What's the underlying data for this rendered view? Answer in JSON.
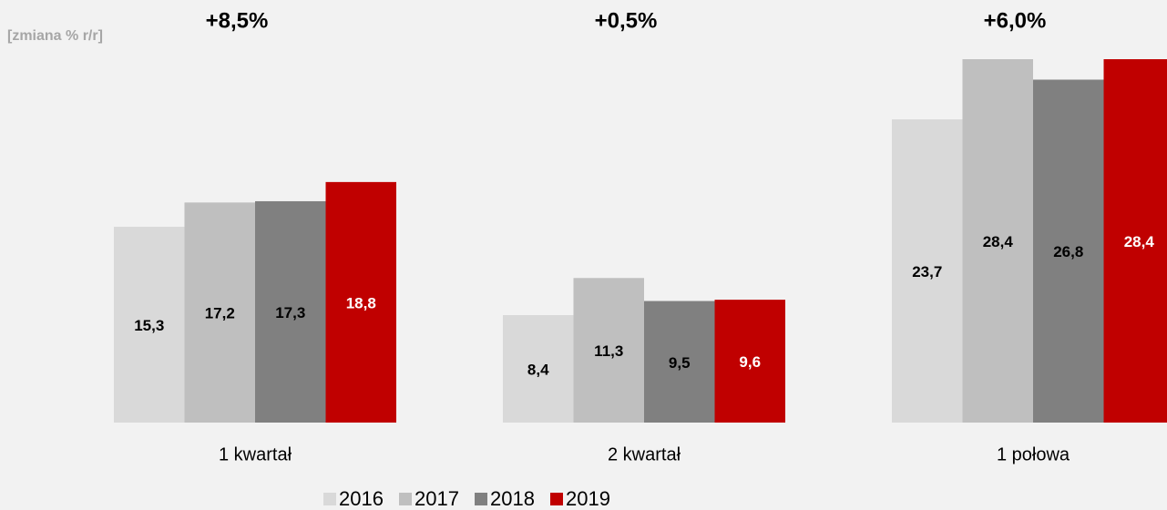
{
  "chart_data": {
    "type": "bar",
    "note": "[zmiana % r/r]",
    "annotations": [
      "+8,5%",
      "+0,5%",
      "+6,0%"
    ],
    "categories": [
      "1 kwartał",
      "2 kwartał",
      "1 połowa"
    ],
    "series": [
      {
        "name": "2016",
        "color": "#d9d9d9",
        "values": [
          15.3,
          8.4,
          23.7
        ],
        "value_labels": [
          "15,3",
          "8,4",
          "23,7"
        ]
      },
      {
        "name": "2017",
        "color": "#bfbfbf",
        "values": [
          17.2,
          11.3,
          28.4
        ],
        "value_labels": [
          "17,2",
          "11,3",
          "28,4"
        ]
      },
      {
        "name": "2018",
        "color": "#808080",
        "values": [
          17.3,
          9.5,
          26.8
        ],
        "value_labels": [
          "17,3",
          "9,5",
          "26,8"
        ]
      },
      {
        "name": "2019",
        "color": "#c00000",
        "values": [
          18.8,
          9.6,
          28.4
        ],
        "value_labels": [
          "18,8",
          "9,6",
          "28,4"
        ]
      }
    ]
  }
}
